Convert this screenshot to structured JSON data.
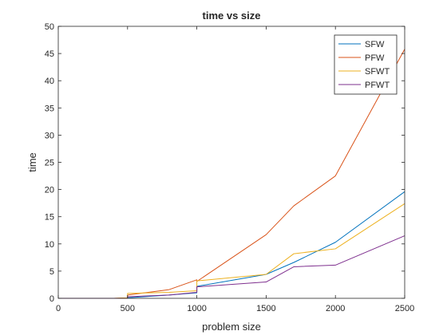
{
  "chart_data": {
    "type": "line",
    "title": "time vs size",
    "xlabel": "problem size",
    "ylabel": "time",
    "xlim": [
      0,
      2500
    ],
    "ylim": [
      0,
      50
    ],
    "xticks": [
      0,
      500,
      1000,
      1500,
      2000,
      2500
    ],
    "yticks": [
      0,
      5,
      10,
      15,
      20,
      25,
      30,
      35,
      40,
      45,
      50
    ],
    "xtick_labels": [
      "0",
      "500",
      "1000",
      "1500",
      "2000",
      "2500"
    ],
    "ytick_labels": [
      "0",
      "5",
      "10",
      "15",
      "20",
      "25",
      "30",
      "35",
      "40",
      "45",
      "50"
    ],
    "grid": false,
    "legend_position": "top-right",
    "series": [
      {
        "name": "SFW",
        "color": "#0072BD",
        "x": [
          0,
          400,
          500,
          500,
          800,
          1000,
          1000,
          1500,
          1700,
          2000,
          2500
        ],
        "y": [
          0,
          0,
          0,
          0.1,
          0.6,
          1.0,
          2.2,
          4.4,
          6.6,
          10.3,
          19.6
        ]
      },
      {
        "name": "PFW",
        "color": "#D95319",
        "x": [
          0,
          400,
          500,
          500,
          800,
          1000,
          1000,
          1500,
          1700,
          2000,
          2500
        ],
        "y": [
          0,
          0,
          0.1,
          0.6,
          1.6,
          3.4,
          3.1,
          11.7,
          17.0,
          22.5,
          45.8
        ]
      },
      {
        "name": "SFWT",
        "color": "#EDB120",
        "x": [
          0,
          400,
          500,
          500,
          800,
          1000,
          1000,
          1500,
          1700,
          2000,
          2500
        ],
        "y": [
          0,
          0,
          0.1,
          0.9,
          1.1,
          1.4,
          3.2,
          4.4,
          8.2,
          9.1,
          17.4
        ]
      },
      {
        "name": "PFWT",
        "color": "#7E2F8E",
        "x": [
          0,
          400,
          500,
          500,
          800,
          1000,
          1000,
          1500,
          1700,
          2000,
          2500
        ],
        "y": [
          0,
          0,
          0,
          0.3,
          0.6,
          1.1,
          2.1,
          3.0,
          5.8,
          6.1,
          11.5
        ]
      }
    ]
  }
}
